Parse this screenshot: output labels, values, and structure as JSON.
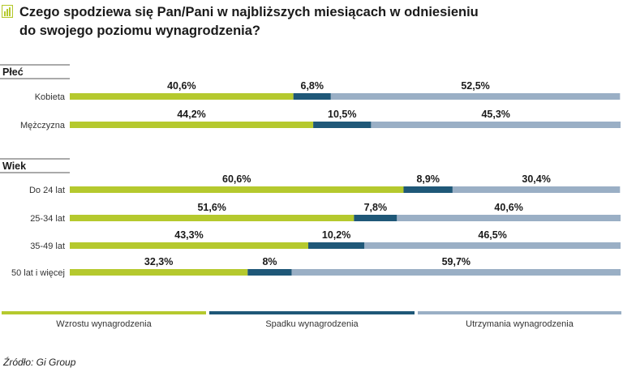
{
  "title_line1": "Czego spodziewa się Pan/Pani w najbliższych miesiącach w odniesieniu",
  "title_line2": "do swojego poziomu wynagrodzenia?",
  "source": "Źródło: Gi Group",
  "colors": {
    "green": "#b5c92e",
    "darkblue": "#1f5878",
    "lightblue": "#9aafc5",
    "icon": "#b5c92e"
  },
  "chart_data": {
    "type": "bar",
    "orientation": "horizontal",
    "stacked": true,
    "value_format": "percent",
    "groups": [
      {
        "name": "Płeć",
        "categories": [
          "Kobieta",
          "Mężczyzna"
        ]
      },
      {
        "name": "Wiek",
        "categories": [
          "Do 24 lat",
          "25-34 lat",
          "35-49 lat",
          "50 lat i więcej"
        ]
      }
    ],
    "categories": [
      "Kobieta",
      "Mężczyzna",
      "Do 24 lat",
      "25-34 lat",
      "35-49 lat",
      "50 lat i więcej"
    ],
    "series": [
      {
        "name": "Wzrostu wynagrodzenia",
        "color": "#b5c92e",
        "values": [
          40.6,
          44.2,
          60.6,
          51.6,
          43.3,
          32.3
        ],
        "labels": [
          "40,6%",
          "44,2%",
          "60,6%",
          "51,6%",
          "43,3%",
          "32,3%"
        ]
      },
      {
        "name": "Spadku wynagrodzenia",
        "color": "#1f5878",
        "values": [
          6.8,
          10.5,
          8.9,
          7.8,
          10.2,
          8
        ],
        "labels": [
          "6,8%",
          "10,5%",
          "8,9%",
          "7,8%",
          "10,2%",
          "8%"
        ]
      },
      {
        "name": "Utrzymania wynagrodzenia",
        "color": "#9aafc5",
        "values": [
          52.5,
          45.3,
          30.4,
          40.6,
          46.5,
          59.7
        ],
        "labels": [
          "52,5%",
          "45,3%",
          "30,4%",
          "40,6%",
          "46,5%",
          "59,7%"
        ]
      }
    ],
    "legend": "bottom",
    "xlim": [
      0,
      100
    ],
    "grid": false
  }
}
